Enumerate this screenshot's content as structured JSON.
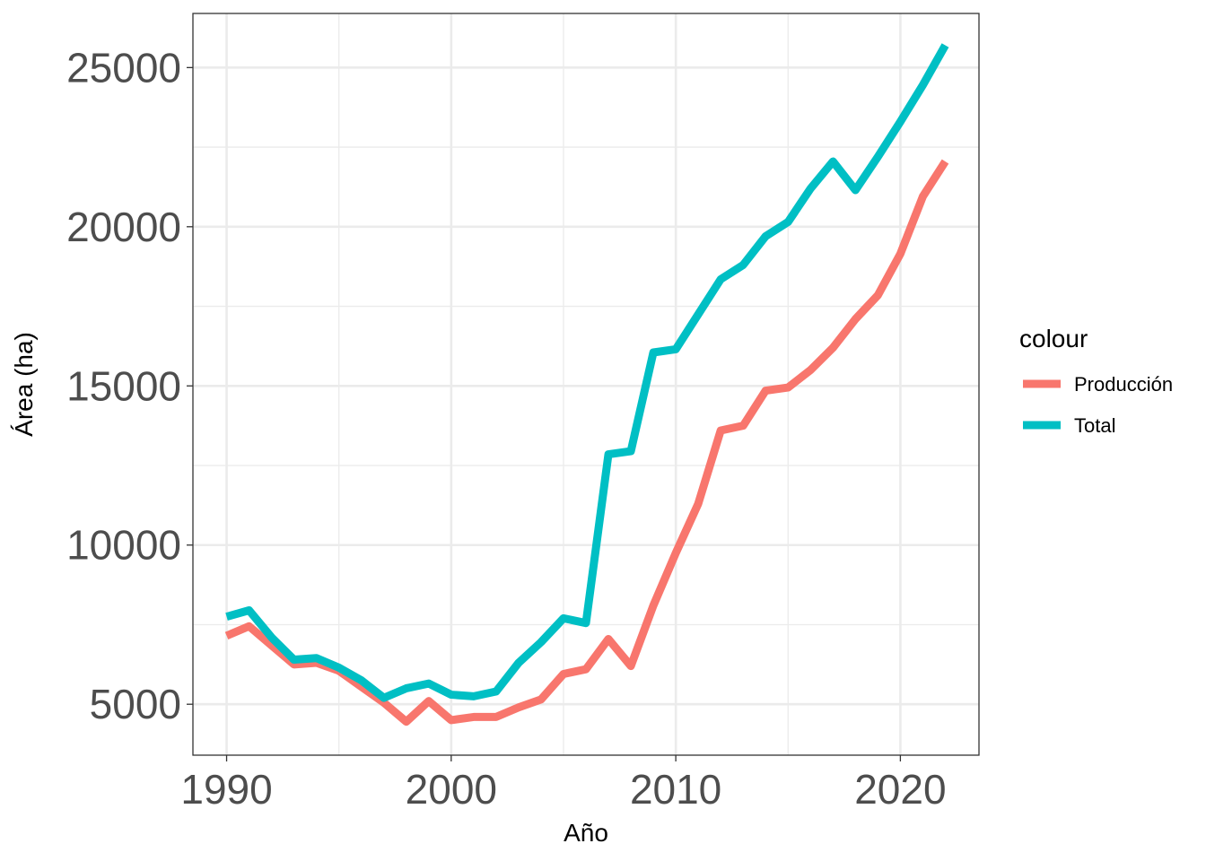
{
  "chart_data": {
    "type": "line",
    "xlabel": "Año",
    "ylabel": "Área (ha)",
    "xlim": [
      1988.5,
      2023.5
    ],
    "ylim": [
      3400,
      26700
    ],
    "x_ticks": [
      1990,
      2000,
      2010,
      2020
    ],
    "y_ticks": [
      5000,
      10000,
      15000,
      20000,
      25000
    ],
    "x_tick_labels": [
      "1990",
      "2000",
      "2010",
      "2020"
    ],
    "y_tick_labels": [
      "5000",
      "10000",
      "15000",
      "20000",
      "25000"
    ],
    "grid": true,
    "legend": {
      "title": "colour",
      "placement": "right"
    },
    "x": [
      1990,
      1991,
      1992,
      1993,
      1994,
      1995,
      1996,
      1997,
      1998,
      1999,
      2000,
      2001,
      2002,
      2003,
      2004,
      2005,
      2006,
      2007,
      2008,
      2009,
      2010,
      2011,
      2012,
      2013,
      2014,
      2015,
      2016,
      2017,
      2018,
      2019,
      2020,
      2021,
      2022
    ],
    "series": [
      {
        "name": "Producción",
        "color": "#F8766D",
        "values": [
          7150,
          7450,
          6850,
          6250,
          6300,
          6050,
          5550,
          5050,
          4450,
          5100,
          4500,
          4600,
          4600,
          4900,
          5150,
          5950,
          6100,
          7050,
          6200,
          8100,
          9750,
          11300,
          13600,
          13750,
          14850,
          14950,
          15500,
          16200,
          17100,
          17850,
          19150,
          20950,
          22050
        ]
      },
      {
        "name": "Total",
        "color": "#00BFC4",
        "values": [
          7750,
          7950,
          7100,
          6400,
          6450,
          6150,
          5750,
          5200,
          5500,
          5650,
          5300,
          5250,
          5400,
          6300,
          6950,
          7700,
          7550,
          12850,
          12950,
          16050,
          16150,
          17250,
          18350,
          18800,
          19700,
          20150,
          21200,
          22050,
          21150,
          22200,
          23300,
          24450,
          25700
        ]
      }
    ]
  }
}
